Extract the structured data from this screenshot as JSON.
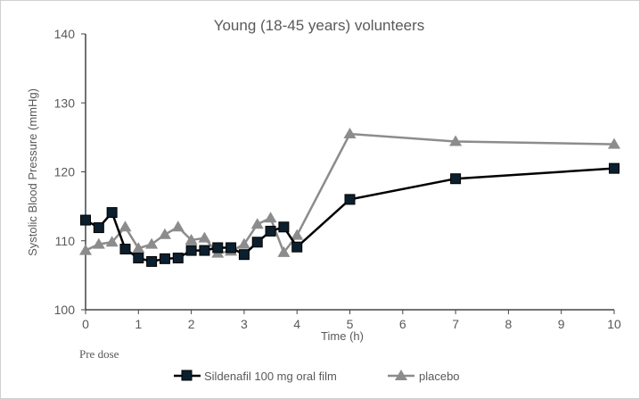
{
  "chart_data": {
    "type": "line",
    "title": "Young (18-45 years) volunteers",
    "xlabel": "Time (h)",
    "ylabel": "Systolic Blood Pressure (mmHg)",
    "x_annotation": "Pre dose",
    "xlim": [
      0,
      10
    ],
    "ylim": [
      100,
      140
    ],
    "xticks": [
      0,
      1,
      2,
      3,
      4,
      5,
      6,
      7,
      8,
      9,
      10
    ],
    "yticks": [
      100,
      110,
      120,
      130,
      140
    ],
    "grid": false,
    "legend": "bottom",
    "series": [
      {
        "name": "Sildenafil 100 mg oral film",
        "color": "#000000",
        "marker": "square",
        "marker_fill": "#0b1f2e",
        "x": [
          0,
          0.25,
          0.5,
          0.75,
          1,
          1.25,
          1.5,
          1.75,
          2,
          2.25,
          2.5,
          2.75,
          3,
          3.25,
          3.5,
          3.75,
          4,
          5,
          7,
          10
        ],
        "y": [
          113.0,
          111.9,
          114.1,
          108.8,
          107.5,
          107.0,
          107.4,
          107.5,
          108.6,
          108.6,
          109.0,
          109.0,
          108.0,
          109.8,
          111.4,
          112.0,
          109.1,
          116.0,
          119.0,
          120.5
        ]
      },
      {
        "name": "placebo",
        "color": "#8c8c8c",
        "marker": "triangle",
        "x": [
          0,
          0.25,
          0.5,
          0.75,
          1,
          1.25,
          1.5,
          1.75,
          2,
          2.25,
          2.5,
          2.75,
          3,
          3.25,
          3.5,
          3.75,
          4,
          5,
          7,
          10
        ],
        "y": [
          108.6,
          109.5,
          109.8,
          112.0,
          108.9,
          109.5,
          110.9,
          112.0,
          110.1,
          110.4,
          108.2,
          108.5,
          109.5,
          112.4,
          113.3,
          108.3,
          110.8,
          125.5,
          124.4,
          124.0
        ]
      }
    ]
  }
}
